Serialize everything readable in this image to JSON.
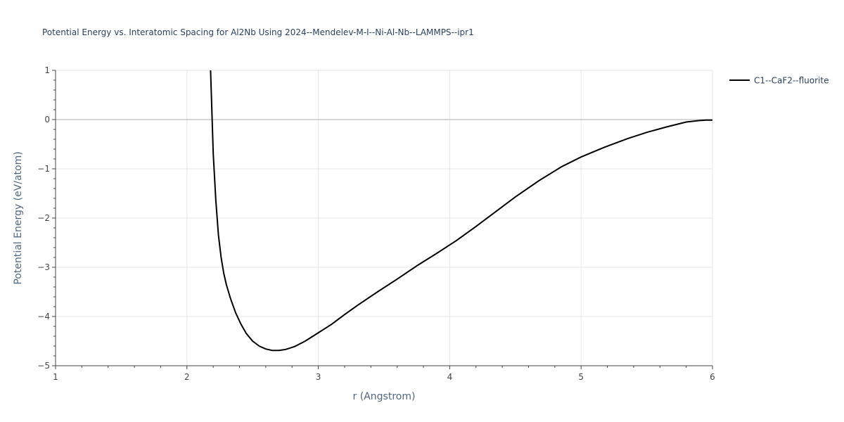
{
  "chart_data": {
    "type": "line",
    "title": "Potential Energy vs. Interatomic Spacing for Al2Nb Using 2024--Mendelev-M-I--Ni-Al-Nb--LAMMPS--ipr1",
    "xlabel": "r (Angstrom)",
    "ylabel": "Potential Energy (eV/atom)",
    "xlim": [
      1,
      6
    ],
    "ylim": [
      -5,
      1
    ],
    "xticks": [
      1,
      2,
      3,
      4,
      5,
      6
    ],
    "yticks": [
      1,
      0,
      -1,
      -2,
      -3,
      -4,
      -5
    ],
    "xtick_labels": [
      "1",
      "2",
      "3",
      "4",
      "5",
      "6"
    ],
    "ytick_labels": [
      "1",
      "0",
      "−1",
      "−2",
      "−3",
      "−4",
      "−5"
    ],
    "grid": true,
    "legend_position": "top-right",
    "series": [
      {
        "name": "C1--CaF2--fluorite",
        "color": "#000000",
        "x": [
          2.18,
          2.2,
          2.22,
          2.24,
          2.26,
          2.28,
          2.3,
          2.33,
          2.37,
          2.41,
          2.45,
          2.5,
          2.55,
          2.6,
          2.65,
          2.7,
          2.75,
          2.82,
          2.9,
          3.0,
          3.1,
          3.2,
          3.3,
          3.45,
          3.6,
          3.75,
          3.9,
          4.05,
          4.2,
          4.35,
          4.5,
          4.68,
          4.85,
          5.0,
          5.18,
          5.35,
          5.5,
          5.65,
          5.8,
          5.9,
          5.95,
          6.0
        ],
        "y": [
          1.0,
          -0.7,
          -1.65,
          -2.35,
          -2.8,
          -3.12,
          -3.35,
          -3.62,
          -3.92,
          -4.15,
          -4.34,
          -4.5,
          -4.6,
          -4.66,
          -4.69,
          -4.69,
          -4.67,
          -4.61,
          -4.5,
          -4.33,
          -4.16,
          -3.96,
          -3.77,
          -3.5,
          -3.24,
          -2.97,
          -2.72,
          -2.46,
          -2.17,
          -1.87,
          -1.57,
          -1.24,
          -0.96,
          -0.76,
          -0.56,
          -0.39,
          -0.26,
          -0.15,
          -0.05,
          -0.02,
          -0.01,
          -0.01
        ]
      }
    ]
  }
}
